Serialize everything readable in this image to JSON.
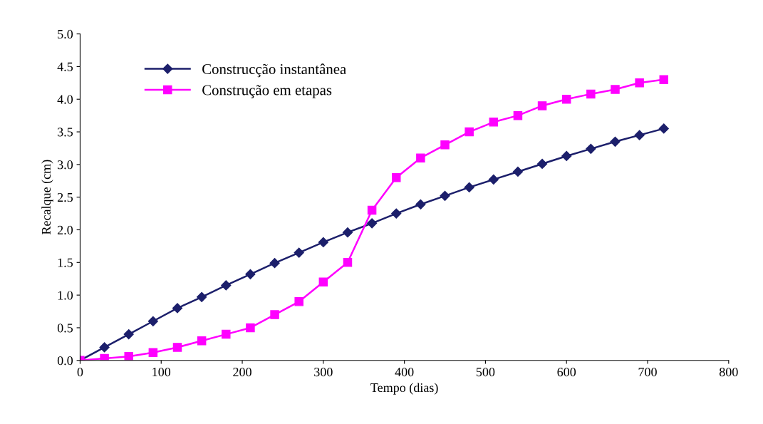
{
  "chart_data": {
    "type": "line",
    "xlabel": "Tempo (dias)",
    "ylabel": "Recalque (cm)",
    "x": [
      0,
      30,
      60,
      90,
      120,
      150,
      180,
      210,
      240,
      270,
      300,
      330,
      360,
      390,
      420,
      450,
      480,
      510,
      540,
      570,
      600,
      630,
      660,
      690,
      720
    ],
    "series": [
      {
        "name": "Construcção instantânea",
        "color": "#1c1f6b",
        "marker": "diamond",
        "values": [
          0,
          0.2,
          0.4,
          0.6,
          0.8,
          0.97,
          1.15,
          1.32,
          1.49,
          1.65,
          1.81,
          1.96,
          2.1,
          2.25,
          2.39,
          2.52,
          2.65,
          2.77,
          2.89,
          3.01,
          3.13,
          3.24,
          3.35,
          3.45,
          3.55
        ]
      },
      {
        "name": "Construção em etapas",
        "color": "#ff00ff",
        "marker": "square",
        "values": [
          0,
          0.03,
          0.06,
          0.12,
          0.2,
          0.3,
          0.4,
          0.5,
          0.7,
          0.9,
          1.2,
          1.5,
          2.3,
          2.8,
          3.1,
          3.3,
          3.5,
          3.65,
          3.75,
          3.9,
          4.0,
          4.08,
          4.15,
          4.25,
          4.3
        ]
      }
    ],
    "xlim": [
      0,
      800
    ],
    "xticks": [
      0,
      100,
      200,
      300,
      400,
      500,
      600,
      700,
      800
    ],
    "ylim": [
      0,
      5
    ],
    "yticks": [
      {
        "value": 0,
        "label": "0.0"
      },
      {
        "value": 0.5,
        "label": "0.5"
      },
      {
        "value": 1,
        "label": "1.0"
      },
      {
        "value": 1.5,
        "label": "1.5"
      },
      {
        "value": 2,
        "label": "2.0"
      },
      {
        "value": 2.5,
        "label": "2.5"
      },
      {
        "value": 3,
        "label": "3.0"
      },
      {
        "value": 3.5,
        "label": "3.5"
      },
      {
        "value": 4,
        "label": "4.0"
      },
      {
        "value": 4.5,
        "label": "4.5"
      },
      {
        "value": 5,
        "label": "5.0"
      }
    ],
    "grid": false,
    "legend": "top left",
    "line_style": "solid"
  }
}
